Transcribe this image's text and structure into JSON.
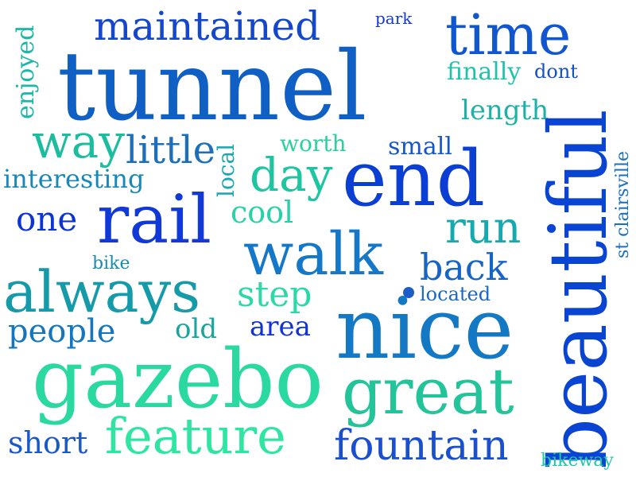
{
  "words": {
    "tunnel": {
      "text": "tunnel",
      "color": "#0f5fc4"
    },
    "beautiful": {
      "text": "beautiful",
      "color": "#0a44d2"
    },
    "nice": {
      "text": "nice",
      "color": "#1379c4"
    },
    "gazebo": {
      "text": "gazebo",
      "color": "#29d9a0"
    },
    "end": {
      "text": "end",
      "color": "#0b3fd4"
    },
    "rail": {
      "text": "rail",
      "color": "#1139d8"
    },
    "time": {
      "text": "time",
      "color": "#1256cf"
    },
    "walk": {
      "text": "walk",
      "color": "#1577c8"
    },
    "always": {
      "text": "always",
      "color": "#149aa8"
    },
    "great": {
      "text": "great",
      "color": "#23c49a"
    },
    "feature": {
      "text": "feature",
      "color": "#2ee6a2"
    },
    "maintained": {
      "text": "maintained",
      "color": "#1547cc"
    },
    "way": {
      "text": "way",
      "color": "#1cbd9e"
    },
    "little": {
      "text": "little",
      "color": "#1c6fb8"
    },
    "day": {
      "text": "day",
      "color": "#1bc6a0"
    },
    "fountain": {
      "text": "fountain",
      "color": "#1a4fd0"
    },
    "run": {
      "text": "run",
      "color": "#15a9b0"
    },
    "back": {
      "text": "back",
      "color": "#1864c4"
    },
    "one": {
      "text": "one",
      "color": "#0c33d8"
    },
    "step": {
      "text": "step",
      "color": "#2bd8a8"
    },
    "people": {
      "text": "people",
      "color": "#1476be"
    },
    "short": {
      "text": "short",
      "color": "#1a58c8"
    },
    "cool": {
      "text": "cool",
      "color": "#2ad0a8"
    },
    "length": {
      "text": "length",
      "color": "#1fb0a6"
    },
    "finally": {
      "text": "finally",
      "color": "#1fc3a8"
    },
    "interesting": {
      "text": "interesting",
      "color": "#1888b8"
    },
    "enjoyed": {
      "text": "enjoyed",
      "color": "#1bb8a8"
    },
    "local": {
      "text": "local",
      "color": "#1aa6b2"
    },
    "worth": {
      "text": "worth",
      "color": "#2bd0a0"
    },
    "small": {
      "text": "small",
      "color": "#1656c8"
    },
    "area": {
      "text": "area",
      "color": "#1133d4"
    },
    "old": {
      "text": "old",
      "color": "#1aa49e"
    },
    "located": {
      "text": "located",
      "color": "#1868c4"
    },
    "bike": {
      "text": "bike",
      "color": "#1a8ab0"
    },
    "park": {
      "text": "park",
      "color": "#1538d0"
    },
    "dont": {
      "text": "dont",
      "color": "#1850c8"
    },
    "st_clairsville": {
      "text": "st clairsville",
      "color": "#1a70c0"
    },
    "bikeway": {
      "text": "bikeway",
      "color": "#22c8a6"
    },
    "dot": {
      "color": "#1a5cc8"
    }
  }
}
